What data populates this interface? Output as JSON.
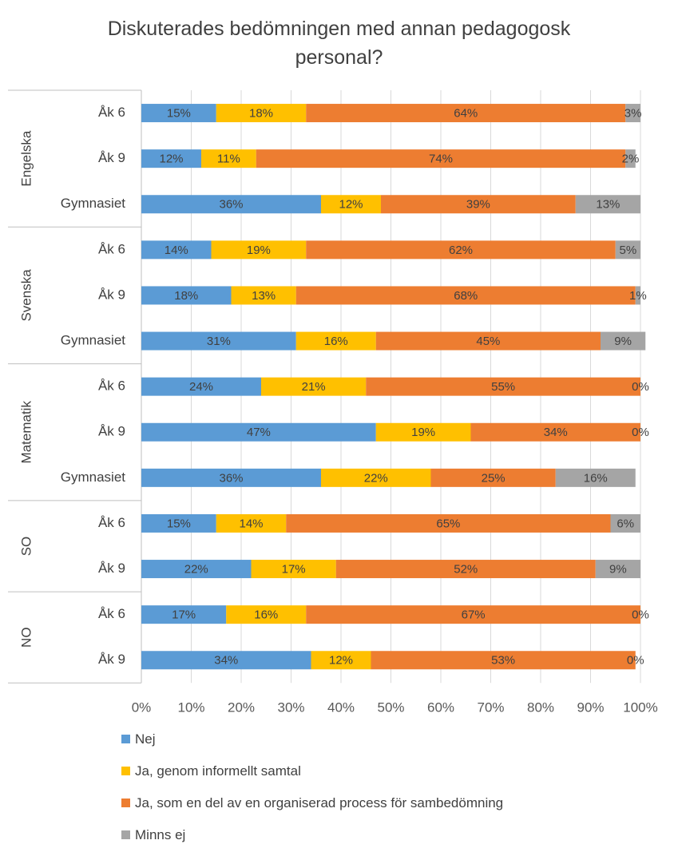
{
  "chart_data": {
    "type": "bar",
    "orientation": "horizontal",
    "stacked": true,
    "title": "Diskuterades bedömningen med annan pedagogosk personal?",
    "title_lines": [
      "Diskuterades bedömningen med annan pedagogosk",
      "personal?"
    ],
    "xlim": [
      0,
      100
    ],
    "x_ticks": [
      "0%",
      "10%",
      "20%",
      "30%",
      "40%",
      "50%",
      "60%",
      "70%",
      "80%",
      "90%",
      "100%"
    ],
    "grid": true,
    "legend_position": "bottom",
    "series": [
      {
        "name": "Nej",
        "color": "#5B9BD5"
      },
      {
        "name": "Ja, genom informellt samtal",
        "color": "#FFC000"
      },
      {
        "name": "Ja, som en del av en organiserad process för sambedömning",
        "color": "#ED7D31"
      },
      {
        "name": "Minns ej",
        "color": "#A5A5A5"
      }
    ],
    "groups": [
      {
        "name": "Engelska",
        "rows": [
          {
            "label": "Åk 6",
            "values": [
              15,
              18,
              64,
              3
            ]
          },
          {
            "label": "Åk 9",
            "values": [
              12,
              11,
              74,
              2
            ]
          },
          {
            "label": "Gymnasiet",
            "values": [
              36,
              12,
              39,
              13
            ]
          }
        ]
      },
      {
        "name": "Svenska",
        "rows": [
          {
            "label": "Åk 6",
            "values": [
              14,
              19,
              62,
              5
            ]
          },
          {
            "label": "Åk 9",
            "values": [
              18,
              13,
              68,
              1
            ]
          },
          {
            "label": "Gymnasiet",
            "values": [
              31,
              16,
              45,
              9
            ]
          }
        ]
      },
      {
        "name": "Matematik",
        "rows": [
          {
            "label": "Åk 6",
            "values": [
              24,
              21,
              55,
              0
            ]
          },
          {
            "label": "Åk 9",
            "values": [
              47,
              19,
              34,
              0
            ]
          },
          {
            "label": "Gymnasiet",
            "values": [
              36,
              22,
              25,
              16
            ]
          }
        ]
      },
      {
        "name": "SO",
        "rows": [
          {
            "label": "Åk 6",
            "values": [
              15,
              14,
              65,
              6
            ]
          },
          {
            "label": "Åk 9",
            "values": [
              22,
              17,
              52,
              9
            ]
          }
        ]
      },
      {
        "name": "NO",
        "rows": [
          {
            "label": "Åk 6",
            "values": [
              17,
              16,
              67,
              0
            ]
          },
          {
            "label": "Åk 9",
            "values": [
              34,
              12,
              53,
              0
            ]
          }
        ]
      }
    ]
  }
}
